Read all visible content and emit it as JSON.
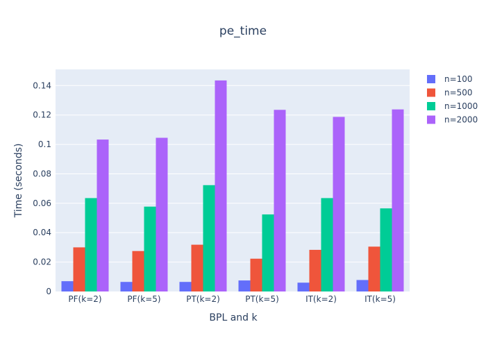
{
  "chart_data": {
    "type": "bar",
    "title": "pe_time",
    "xlabel": "BPL and k",
    "ylabel": "Time (seconds)",
    "categories": [
      "PF(k=2)",
      "PF(k=5)",
      "PT(k=2)",
      "PT(k=5)",
      "IT(k=2)",
      "IT(k=5)"
    ],
    "series": [
      {
        "name": "n=100",
        "color": "#636efa",
        "values": [
          0.007,
          0.0065,
          0.0065,
          0.0075,
          0.006,
          0.0078
        ]
      },
      {
        "name": "n=500",
        "color": "#ef553b",
        "values": [
          0.03,
          0.0275,
          0.0318,
          0.0223,
          0.0283,
          0.0305
        ]
      },
      {
        "name": "n=1000",
        "color": "#00cc96",
        "values": [
          0.0635,
          0.0577,
          0.0723,
          0.0524,
          0.0635,
          0.0565
        ]
      },
      {
        "name": "n=2000",
        "color": "#ab63fa",
        "values": [
          0.1033,
          0.1045,
          0.1435,
          0.1235,
          0.1187,
          0.1238
        ]
      }
    ],
    "ylim": [
      0,
      0.151
    ],
    "yticks": [
      {
        "value": 0,
        "label": "0"
      },
      {
        "value": 0.02,
        "label": "0.02"
      },
      {
        "value": 0.04,
        "label": "0.04"
      },
      {
        "value": 0.06,
        "label": "0.06"
      },
      {
        "value": 0.08,
        "label": "0.08"
      },
      {
        "value": 0.1,
        "label": "0.1"
      },
      {
        "value": 0.12,
        "label": "0.12"
      },
      {
        "value": 0.14,
        "label": "0.14"
      }
    ],
    "grid": true,
    "legend_position": "right",
    "plot_background": "#e5ecf6"
  }
}
